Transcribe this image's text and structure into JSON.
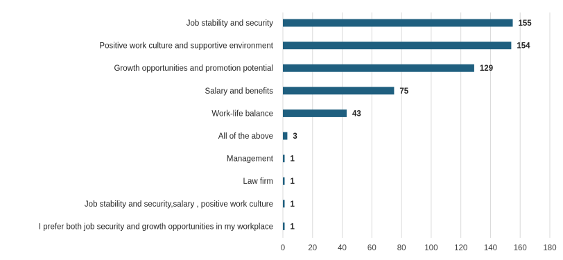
{
  "chart_data": {
    "type": "bar",
    "orientation": "horizontal",
    "title": "",
    "xlabel": "",
    "ylabel": "",
    "categories": [
      "Job stability and security",
      "Positive work culture and supportive environment",
      "Growth opportunities and promotion potential",
      "Salary and benefits",
      "Work-life balance",
      "All of the above",
      "Management",
      "Law firm",
      "Job stability and security,salary , positive work culture",
      "I prefer both job security and growth opportunities in my workplace"
    ],
    "values": [
      155,
      154,
      129,
      75,
      43,
      3,
      1,
      1,
      1,
      1
    ],
    "xlim": [
      0,
      180
    ],
    "xticks": [
      "0",
      "20",
      "40",
      "60",
      "80",
      "100",
      "120",
      "140",
      "160",
      "180"
    ],
    "grid": true,
    "data_labels": true,
    "bar_color": "#1f5f7f"
  }
}
